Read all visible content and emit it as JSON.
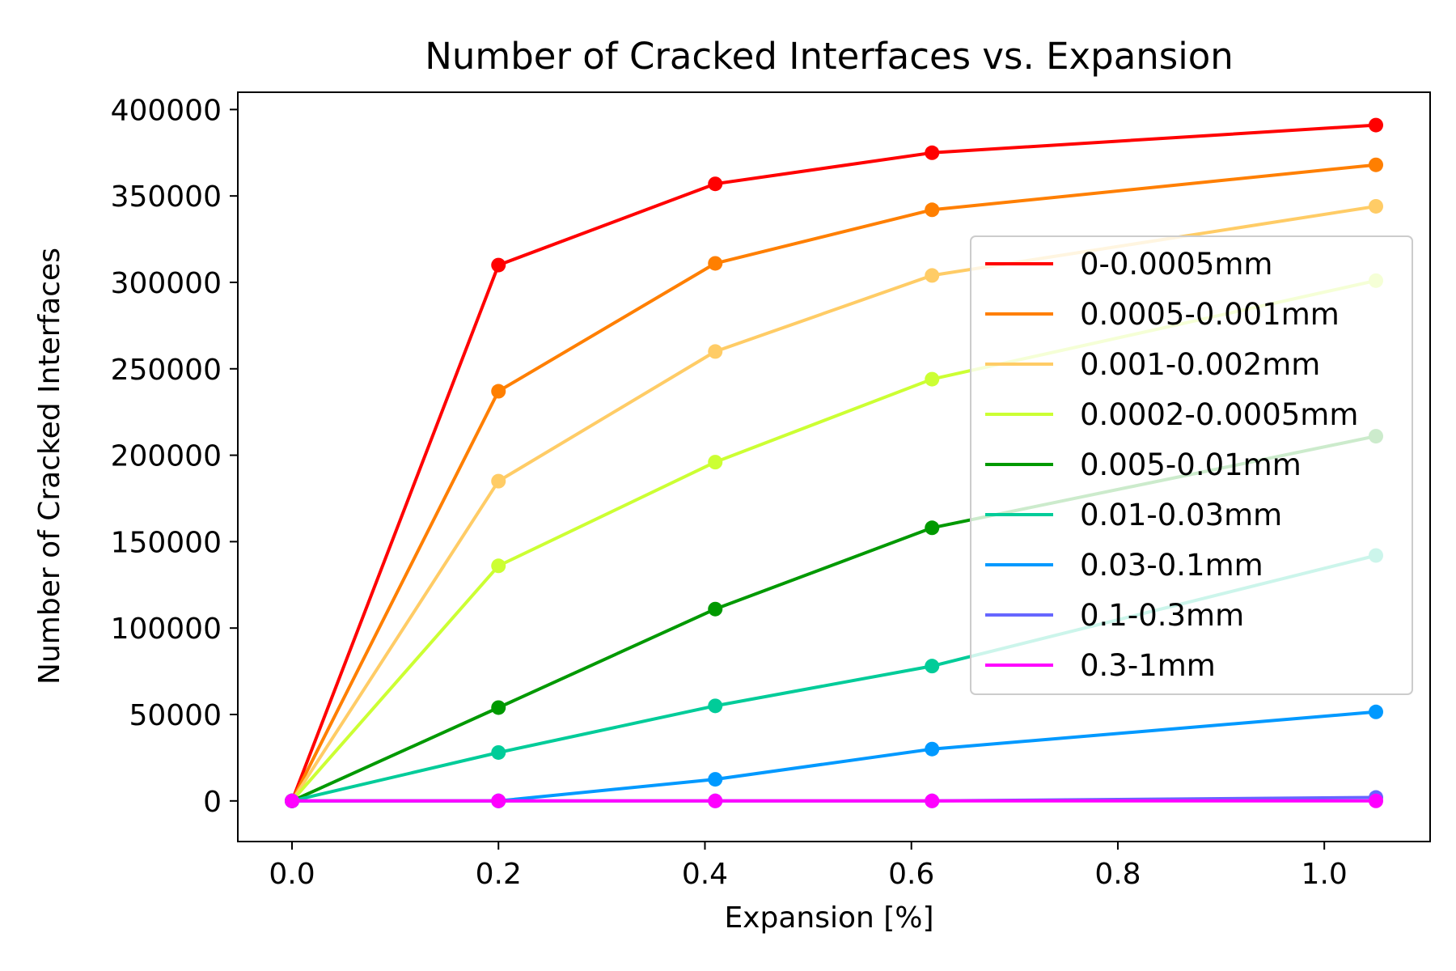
{
  "chart_data": {
    "type": "line",
    "title": "Number of Cracked Interfaces vs. Expansion",
    "xlabel": "Expansion [%]",
    "ylabel": "Number of Cracked Interfaces",
    "xlim": [
      -0.0525,
      1.1025
    ],
    "ylim": [
      -23500,
      410000
    ],
    "xticks": [
      0.0,
      0.2,
      0.4,
      0.6,
      0.8,
      1.0
    ],
    "xtick_labels": [
      "0.0",
      "0.2",
      "0.4",
      "0.6",
      "0.8",
      "1.0"
    ],
    "yticks": [
      0,
      50000,
      100000,
      150000,
      200000,
      250000,
      300000,
      350000,
      400000
    ],
    "ytick_labels": [
      "0",
      "50000",
      "100000",
      "150000",
      "200000",
      "250000",
      "300000",
      "350000",
      "400000"
    ],
    "grid": false,
    "legend_position": "center-right",
    "marker": "circle",
    "x": [
      0.0,
      0.2,
      0.41,
      0.62,
      1.05
    ],
    "series": [
      {
        "name": "0-0.0005mm",
        "color": "#ff0000",
        "values": [
          0,
          310000,
          357000,
          375000,
          391000
        ]
      },
      {
        "name": "0.0005-0.001mm",
        "color": "#ff7f00",
        "values": [
          0,
          237000,
          311000,
          342000,
          368000
        ]
      },
      {
        "name": "0.001-0.002mm",
        "color": "#ffcc66",
        "values": [
          0,
          185000,
          260000,
          304000,
          344000
        ]
      },
      {
        "name": "0.0002-0.0005mm",
        "color": "#ccff33",
        "values": [
          0,
          136000,
          196000,
          244000,
          301000
        ]
      },
      {
        "name": "0.005-0.01mm",
        "color": "#009900",
        "values": [
          0,
          54000,
          111000,
          158000,
          211000
        ]
      },
      {
        "name": "0.01-0.03mm",
        "color": "#00cc99",
        "values": [
          0,
          28000,
          55000,
          78000,
          142000
        ]
      },
      {
        "name": "0.03-0.1mm",
        "color": "#0099ff",
        "values": [
          0,
          0,
          12500,
          30000,
          51500
        ]
      },
      {
        "name": "0.1-0.3mm",
        "color": "#6666ff",
        "values": [
          0,
          0,
          0,
          0,
          2000
        ]
      },
      {
        "name": "0.3-1mm",
        "color": "#ff00ff",
        "values": [
          0,
          0,
          0,
          0,
          0
        ]
      }
    ]
  }
}
